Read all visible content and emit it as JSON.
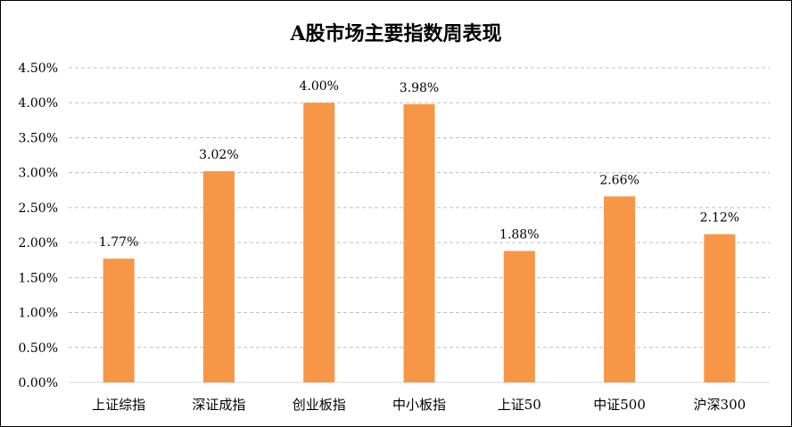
{
  "chart_data": {
    "type": "bar",
    "title": "A股市场主要指数周表现",
    "xlabel": "",
    "ylabel": "",
    "categories": [
      "上证综指",
      "深证成指",
      "创业板指",
      "中小板指",
      "上证50",
      "中证500",
      "沪深300"
    ],
    "values": [
      1.77,
      3.02,
      4.0,
      3.98,
      1.88,
      2.66,
      2.12
    ],
    "data_labels": [
      "1.77%",
      "3.02%",
      "4.00%",
      "3.98%",
      "1.88%",
      "2.66%",
      "2.12%"
    ],
    "ylim": [
      0,
      4.5
    ],
    "yticks": [
      0,
      0.5,
      1.0,
      1.5,
      2.0,
      2.5,
      3.0,
      3.5,
      4.0,
      4.5
    ],
    "ytick_labels": [
      "0.00%",
      "0.50%",
      "1.00%",
      "1.50%",
      "2.00%",
      "2.50%",
      "3.00%",
      "3.50%",
      "4.00%",
      "4.50%"
    ],
    "grid": true,
    "legend": "none",
    "bar_color": "#F79646",
    "grid_color": "#BFBFBF",
    "axis_color": "#D9D9D9"
  }
}
